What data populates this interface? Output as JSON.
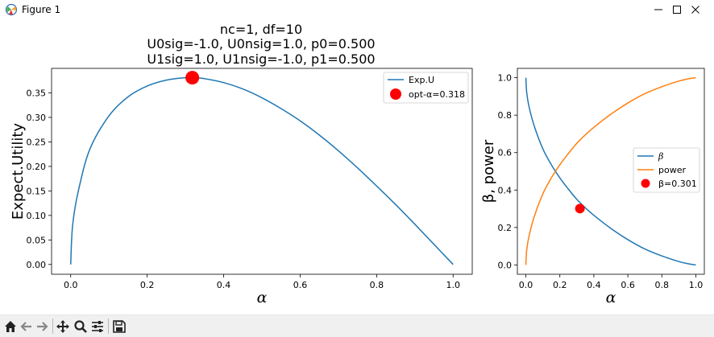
{
  "window": {
    "title": "Figure 1",
    "icon": "matplotlib-icon",
    "controls": [
      "minimize-icon",
      "maximize-icon",
      "close-icon"
    ]
  },
  "toolbar": {
    "buttons": [
      "home-icon",
      "back-icon",
      "forward-icon",
      "pan-icon",
      "zoom-icon",
      "configure-subplots-icon",
      "save-icon"
    ]
  },
  "figure": {
    "title_lines": [
      "nc=1, df=10",
      "U0sig=-1.0, U0nsig=1.0, p0=0.500",
      "U1sig=1.0, U1nsig=-1.0, p1=0.500"
    ]
  },
  "chart_data": [
    {
      "type": "line",
      "xlabel": "α",
      "ylabel": "Expect.Utility",
      "xlim": [
        -0.05,
        1.05
      ],
      "ylim": [
        -0.02,
        0.4
      ],
      "xticks": [
        0.0,
        0.2,
        0.4,
        0.6,
        0.8,
        1.0
      ],
      "xtick_labels": [
        "0.0",
        "0.2",
        "0.4",
        "0.6",
        "0.8",
        "1.0"
      ],
      "yticks": [
        0.0,
        0.05,
        0.1,
        0.15,
        0.2,
        0.25,
        0.3,
        0.35
      ],
      "ytick_labels": [
        "0.00",
        "0.05",
        "0.10",
        "0.15",
        "0.20",
        "0.25",
        "0.30",
        "0.35"
      ],
      "grid": false,
      "legend_position": "top-right",
      "series": [
        {
          "name": "Exp.U",
          "color": "#1f77b4",
          "x": [
            0.0,
            0.005,
            0.02,
            0.05,
            0.1,
            0.15,
            0.2,
            0.25,
            0.3,
            0.318,
            0.35,
            0.4,
            0.45,
            0.5,
            0.55,
            0.6,
            0.65,
            0.7,
            0.75,
            0.8,
            0.85,
            0.9,
            0.95,
            1.0
          ],
          "y": [
            0.0,
            0.08,
            0.15,
            0.235,
            0.303,
            0.342,
            0.364,
            0.376,
            0.381,
            0.381,
            0.379,
            0.371,
            0.358,
            0.34,
            0.318,
            0.293,
            0.264,
            0.232,
            0.197,
            0.16,
            0.122,
            0.082,
            0.041,
            0.0
          ]
        }
      ],
      "markers": [
        {
          "name": "opt-α=0.318",
          "color": "#ff0000",
          "x": 0.318,
          "y": 0.381
        }
      ]
    },
    {
      "type": "line",
      "xlabel": "α",
      "ylabel": "β, power",
      "xlim": [
        -0.05,
        1.05
      ],
      "ylim": [
        -0.05,
        1.05
      ],
      "xticks": [
        0.0,
        0.2,
        0.4,
        0.6,
        0.8,
        1.0
      ],
      "xtick_labels": [
        "0.0",
        "0.2",
        "0.4",
        "0.6",
        "0.8",
        "1.0"
      ],
      "yticks": [
        0.0,
        0.2,
        0.4,
        0.6,
        0.8,
        1.0
      ],
      "ytick_labels": [
        "0.0",
        "0.2",
        "0.4",
        "0.6",
        "0.8",
        "1.0"
      ],
      "grid": false,
      "legend_position": "center-right",
      "series": [
        {
          "name": "β",
          "color": "#1f77b4",
          "x": [
            0.0,
            0.005,
            0.02,
            0.05,
            0.1,
            0.15,
            0.2,
            0.25,
            0.3,
            0.35,
            0.4,
            0.5,
            0.6,
            0.7,
            0.8,
            0.9,
            0.95,
            1.0
          ],
          "y": [
            1.0,
            0.92,
            0.84,
            0.74,
            0.62,
            0.535,
            0.465,
            0.405,
            0.35,
            0.305,
            0.265,
            0.195,
            0.135,
            0.085,
            0.048,
            0.018,
            0.007,
            0.0
          ]
        },
        {
          "name": "power",
          "color": "#ff7f0e",
          "x": [
            0.0,
            0.005,
            0.02,
            0.05,
            0.1,
            0.15,
            0.2,
            0.25,
            0.3,
            0.35,
            0.4,
            0.5,
            0.6,
            0.7,
            0.8,
            0.9,
            0.95,
            1.0
          ],
          "y": [
            0.0,
            0.08,
            0.16,
            0.26,
            0.38,
            0.465,
            0.535,
            0.595,
            0.65,
            0.695,
            0.735,
            0.805,
            0.865,
            0.915,
            0.952,
            0.982,
            0.993,
            1.0
          ]
        }
      ],
      "markers": [
        {
          "name": "β=0.301",
          "color": "#ff0000",
          "x": 0.318,
          "y": 0.301
        }
      ]
    }
  ]
}
